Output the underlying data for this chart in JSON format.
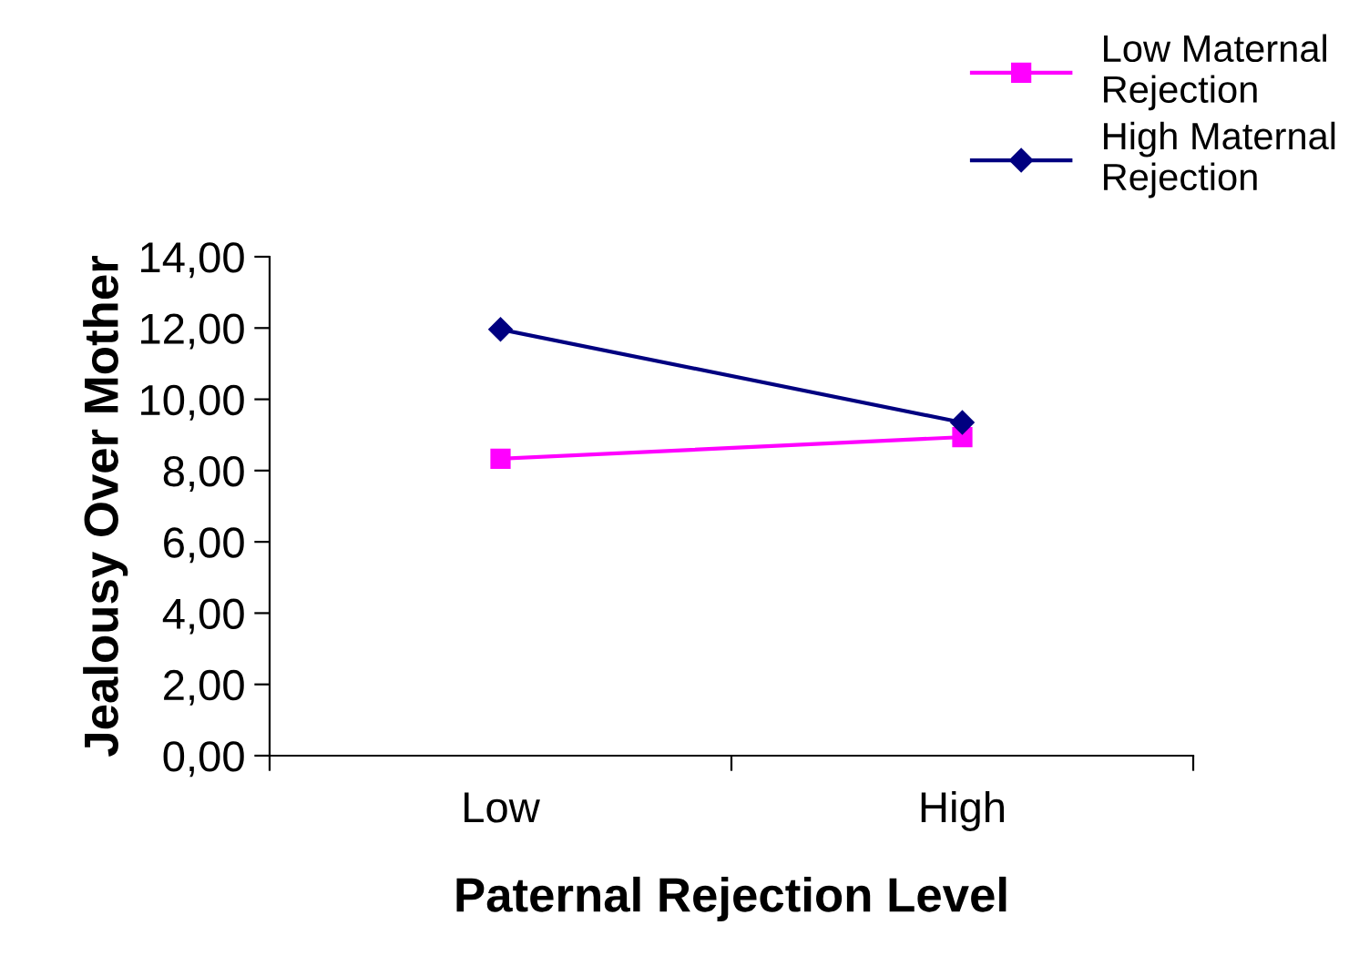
{
  "chart_data": {
    "type": "line",
    "xlabel": "Paternal Rejection Level",
    "ylabel": "Jealousy Over Mother",
    "categories": [
      "Low",
      "High"
    ],
    "series": [
      {
        "name": "Low Maternal\nRejection",
        "color": "#ff00ff",
        "values": [
          8.33,
          8.94
        ],
        "marker": "square"
      },
      {
        "name": "High Maternal\nRejection",
        "color": "#000080",
        "values": [
          11.96,
          9.35
        ],
        "marker": "diamond"
      }
    ],
    "ylim": [
      0,
      14
    ],
    "yticks": [
      {
        "value": 0,
        "label": "0,00"
      },
      {
        "value": 2,
        "label": "2,00"
      },
      {
        "value": 4,
        "label": "4,00"
      },
      {
        "value": 6,
        "label": "6,00"
      },
      {
        "value": 8,
        "label": "8,00"
      },
      {
        "value": 10,
        "label": "10,00"
      },
      {
        "value": 12,
        "label": "12,00"
      },
      {
        "value": 14,
        "label": "14,00"
      }
    ],
    "grid": false,
    "legend": "top right",
    "line_style": "solid"
  }
}
